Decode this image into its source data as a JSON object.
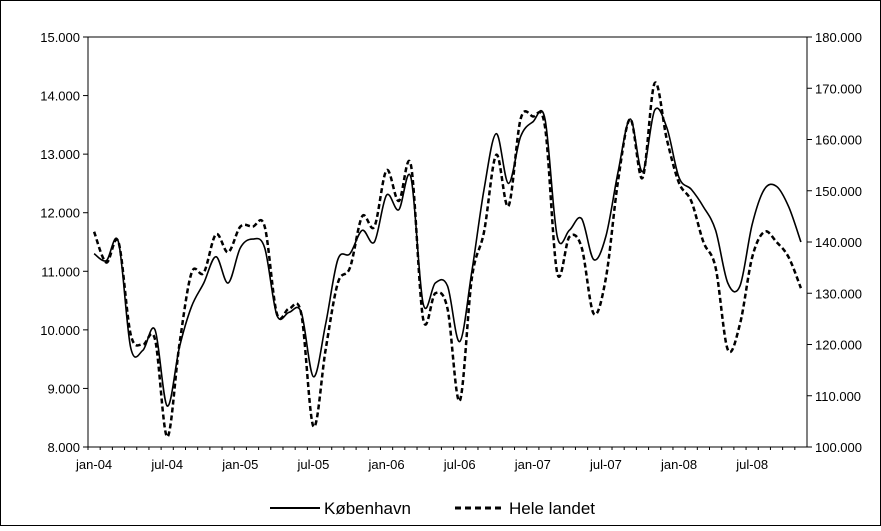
{
  "chart_data": {
    "type": "line",
    "title": "",
    "xlabel": "",
    "ylabel": "",
    "x_tick_labels": [
      "jan-04",
      "jul-04",
      "jan-05",
      "jul-05",
      "jan-06",
      "jul-06",
      "jan-07",
      "jul-07",
      "jan-08",
      "jul-08"
    ],
    "x_range": [
      "2004-01",
      "2008-11"
    ],
    "y_left": {
      "range": [
        8000,
        15000
      ],
      "ticks": [
        "8.000",
        "9.000",
        "10.000",
        "11.000",
        "12.000",
        "13.000",
        "14.000",
        "15.000"
      ]
    },
    "y_right": {
      "range": [
        100000,
        180000
      ],
      "ticks": [
        "100.000",
        "110.000",
        "120.000",
        "130.000",
        "140.000",
        "150.000",
        "160.000",
        "170.000",
        "180.000"
      ]
    },
    "grid": false,
    "legend_position": "bottom",
    "series": [
      {
        "name": "København",
        "axis": "left",
        "style": "solid",
        "color": "#000000",
        "points": [
          [
            "2004-01",
            11300
          ],
          [
            "2004-02",
            11180
          ],
          [
            "2004-03",
            11500
          ],
          [
            "2004-04",
            9700
          ],
          [
            "2004-05",
            9650
          ],
          [
            "2004-06",
            10000
          ],
          [
            "2004-07",
            8700
          ],
          [
            "2004-08",
            9700
          ],
          [
            "2004-09",
            10400
          ],
          [
            "2004-10",
            10800
          ],
          [
            "2004-11",
            11250
          ],
          [
            "2004-12",
            10800
          ],
          [
            "2005-01",
            11400
          ],
          [
            "2005-02",
            11550
          ],
          [
            "2005-03",
            11400
          ],
          [
            "2005-04",
            10250
          ],
          [
            "2005-05",
            10300
          ],
          [
            "2005-06",
            10300
          ],
          [
            "2005-07",
            9200
          ],
          [
            "2005-08",
            10100
          ],
          [
            "2005-09",
            11200
          ],
          [
            "2005-10",
            11300
          ],
          [
            "2005-11",
            11700
          ],
          [
            "2005-12",
            11500
          ],
          [
            "2006-01",
            12300
          ],
          [
            "2006-02",
            12050
          ],
          [
            "2006-03",
            12600
          ],
          [
            "2006-04",
            10450
          ],
          [
            "2006-05",
            10800
          ],
          [
            "2006-06",
            10750
          ],
          [
            "2006-07",
            9800
          ],
          [
            "2006-08",
            11000
          ],
          [
            "2006-09",
            12400
          ],
          [
            "2006-10",
            13350
          ],
          [
            "2006-11",
            12500
          ],
          [
            "2006-12",
            13300
          ],
          [
            "2007-01",
            13550
          ],
          [
            "2007-02",
            13600
          ],
          [
            "2007-03",
            11600
          ],
          [
            "2007-04",
            11700
          ],
          [
            "2007-05",
            11900
          ],
          [
            "2007-06",
            11200
          ],
          [
            "2007-07",
            11600
          ],
          [
            "2007-08",
            12700
          ],
          [
            "2007-09",
            13600
          ],
          [
            "2007-10",
            12700
          ],
          [
            "2007-11",
            13750
          ],
          [
            "2007-12",
            13450
          ],
          [
            "2008-01",
            12600
          ],
          [
            "2008-02",
            12400
          ],
          [
            "2008-03",
            12100
          ],
          [
            "2008-04",
            11700
          ],
          [
            "2008-05",
            10800
          ],
          [
            "2008-06",
            10750
          ],
          [
            "2008-07",
            11800
          ],
          [
            "2008-08",
            12400
          ],
          [
            "2008-09",
            12450
          ],
          [
            "2008-10",
            12100
          ],
          [
            "2008-11",
            11500
          ]
        ]
      },
      {
        "name": "Hele landet",
        "axis": "right",
        "style": "dashed",
        "color": "#000000",
        "points": [
          [
            "2004-01",
            142000
          ],
          [
            "2004-02",
            136000
          ],
          [
            "2004-03",
            140000
          ],
          [
            "2004-04",
            122000
          ],
          [
            "2004-05",
            120000
          ],
          [
            "2004-06",
            121000
          ],
          [
            "2004-07",
            102000
          ],
          [
            "2004-08",
            120000
          ],
          [
            "2004-09",
            134000
          ],
          [
            "2004-10",
            134000
          ],
          [
            "2004-11",
            141500
          ],
          [
            "2004-12",
            138000
          ],
          [
            "2005-01",
            143000
          ],
          [
            "2005-02",
            143000
          ],
          [
            "2005-03",
            143000
          ],
          [
            "2005-04",
            126000
          ],
          [
            "2005-05",
            127000
          ],
          [
            "2005-06",
            126000
          ],
          [
            "2005-07",
            104000
          ],
          [
            "2005-08",
            119000
          ],
          [
            "2005-09",
            132000
          ],
          [
            "2005-10",
            135000
          ],
          [
            "2005-11",
            145000
          ],
          [
            "2005-12",
            143000
          ],
          [
            "2006-01",
            154000
          ],
          [
            "2006-02",
            148000
          ],
          [
            "2006-03",
            155000
          ],
          [
            "2006-04",
            125000
          ],
          [
            "2006-05",
            130000
          ],
          [
            "2006-06",
            127000
          ],
          [
            "2006-07",
            109000
          ],
          [
            "2006-08",
            133000
          ],
          [
            "2006-09",
            142000
          ],
          [
            "2006-10",
            157000
          ],
          [
            "2006-11",
            147000
          ],
          [
            "2006-12",
            164000
          ],
          [
            "2007-01",
            164500
          ],
          [
            "2007-02",
            162500
          ],
          [
            "2007-03",
            134000
          ],
          [
            "2007-04",
            141000
          ],
          [
            "2007-05",
            139000
          ],
          [
            "2007-06",
            126000
          ],
          [
            "2007-07",
            133000
          ],
          [
            "2007-08",
            152000
          ],
          [
            "2007-09",
            164000
          ],
          [
            "2007-10",
            152500
          ],
          [
            "2007-11",
            171000
          ],
          [
            "2007-12",
            160000
          ],
          [
            "2008-01",
            151500
          ],
          [
            "2008-02",
            148000
          ],
          [
            "2008-03",
            140000
          ],
          [
            "2008-04",
            135000
          ],
          [
            "2008-05",
            119000
          ],
          [
            "2008-06",
            124000
          ],
          [
            "2008-07",
            137000
          ],
          [
            "2008-08",
            142000
          ],
          [
            "2008-09",
            140000
          ],
          [
            "2008-10",
            137000
          ],
          [
            "2008-11",
            131000
          ]
        ]
      }
    ]
  }
}
